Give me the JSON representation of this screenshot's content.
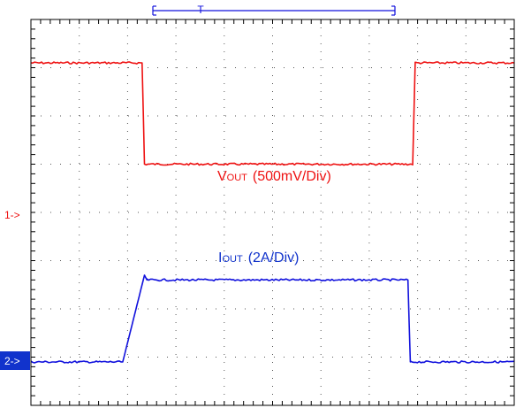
{
  "chart_data": {
    "type": "line",
    "title": "",
    "xlabel": "",
    "ylabel": "",
    "grid": true,
    "x_divisions": 10,
    "y_divisions": 8,
    "xlim": [
      0,
      10
    ],
    "ylim": [
      0,
      8
    ],
    "trigger_marker": "T",
    "series": [
      {
        "name": "V",
        "name_sub": "OUT",
        "scale": "(500mV/Div)",
        "color": "#ee1111",
        "channel_marker": "1->",
        "ground_level_div": 5.4,
        "points": [
          [
            0,
            7.1
          ],
          [
            2.3,
            7.1
          ],
          [
            2.35,
            5.0
          ],
          [
            7.9,
            5.0
          ],
          [
            7.95,
            7.1
          ],
          [
            10,
            7.1
          ]
        ]
      },
      {
        "name": "I",
        "name_sub": "OUT",
        "scale": "(2A/Div)",
        "color": "#1111dd",
        "channel_marker": "2->",
        "ground_level_div": 0.9,
        "points": [
          [
            0,
            0.9
          ],
          [
            1.9,
            0.9
          ],
          [
            2.35,
            2.7
          ],
          [
            2.4,
            2.6
          ],
          [
            7.8,
            2.6
          ],
          [
            7.85,
            0.9
          ],
          [
            10,
            0.9
          ]
        ]
      }
    ]
  }
}
